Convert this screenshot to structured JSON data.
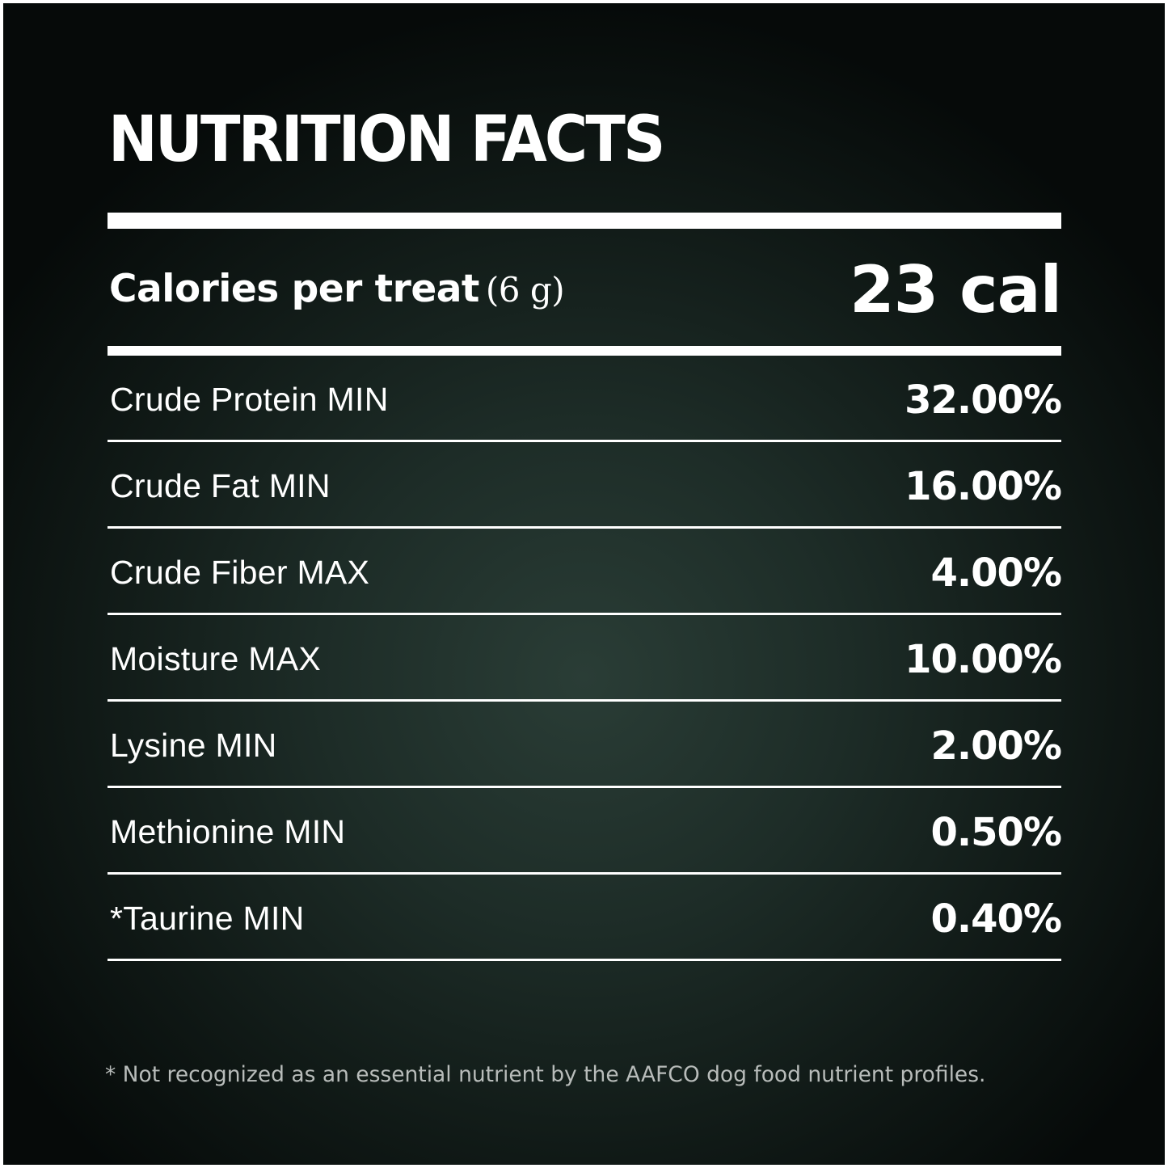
{
  "title": "NUTRITION FACTS",
  "calories": {
    "label": "Calories per treat",
    "serving": "(6 g)",
    "value": "23 cal"
  },
  "nutrients": [
    {
      "label": "Crude Protein MIN",
      "value": "32.00%"
    },
    {
      "label": "Crude Fat MIN",
      "value": "16.00%"
    },
    {
      "label": "Crude Fiber MAX",
      "value": "4.00%"
    },
    {
      "label": "Moisture MAX",
      "value": "10.00%"
    },
    {
      "label": "Lysine MIN",
      "value": "2.00%"
    },
    {
      "label": "Methionine MIN",
      "value": "0.50%"
    },
    {
      "label": "*Taurine MIN",
      "value": "0.40%"
    }
  ],
  "footnote": "* Not recognized as an essential nutrient by the AAFCO dog food nutrient profiles.",
  "colors": {
    "background": "#1d2c27",
    "text": "#ffffff",
    "footnote": "#b8bcba"
  }
}
